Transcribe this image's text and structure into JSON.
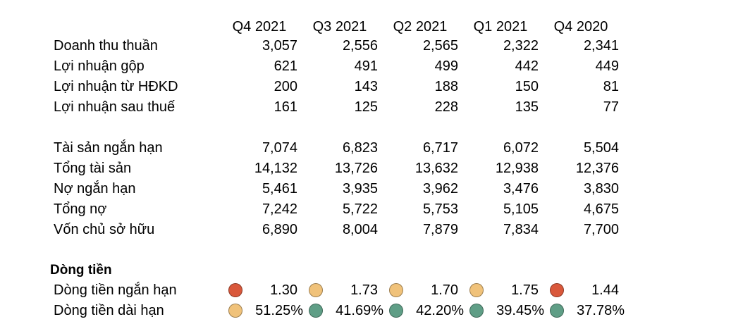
{
  "columns": [
    "Q4 2021",
    "Q3 2021",
    "Q2 2021",
    "Q1 2021",
    "Q4 2020"
  ],
  "income": [
    {
      "label": "Doanh thu thuần",
      "values": [
        "3,057",
        "2,556",
        "2,565",
        "2,322",
        "2,341"
      ]
    },
    {
      "label": "Lợi nhuận gộp",
      "values": [
        "621",
        "491",
        "499",
        "442",
        "449"
      ]
    },
    {
      "label": "Lợi nhuận từ HĐKD",
      "values": [
        "200",
        "143",
        "188",
        "150",
        "81"
      ]
    },
    {
      "label": "Lợi nhuận sau thuế",
      "values": [
        "161",
        "125",
        "228",
        "135",
        "77"
      ]
    }
  ],
  "balance": [
    {
      "label": "Tài sản ngắn hạn",
      "values": [
        "7,074",
        "6,823",
        "6,717",
        "6,072",
        "5,504"
      ]
    },
    {
      "label": "Tổng tài sản",
      "values": [
        "14,132",
        "13,726",
        "13,632",
        "12,938",
        "12,376"
      ]
    },
    {
      "label": "Nợ ngắn hạn",
      "values": [
        "5,461",
        "3,935",
        "3,962",
        "3,476",
        "3,830"
      ]
    },
    {
      "label": "Tổng nợ",
      "values": [
        "7,242",
        "5,722",
        "5,753",
        "5,105",
        "4,675"
      ]
    },
    {
      "label": "Vốn chủ sở hữu",
      "values": [
        "6,890",
        "8,004",
        "7,879",
        "7,834",
        "7,700"
      ]
    }
  ],
  "cashflow": {
    "title": "Dòng tiền",
    "rows": [
      {
        "label": "Dòng tiền ngắn hạn",
        "values": [
          "1.30",
          "1.73",
          "1.70",
          "1.75",
          "1.44"
        ],
        "indicators": [
          "#d9583b",
          "#f0c27a",
          "#f0c27a",
          "#f0c27a",
          "#d9583b"
        ]
      },
      {
        "label": "Dòng tiền dài hạn",
        "values": [
          "51.25%",
          "41.69%",
          "42.20%",
          "39.45%",
          "37.78%"
        ],
        "indicators": [
          "#f0c27a",
          "#5f9e86",
          "#5f9e86",
          "#5f9e86",
          "#5f9e86"
        ]
      }
    ]
  }
}
